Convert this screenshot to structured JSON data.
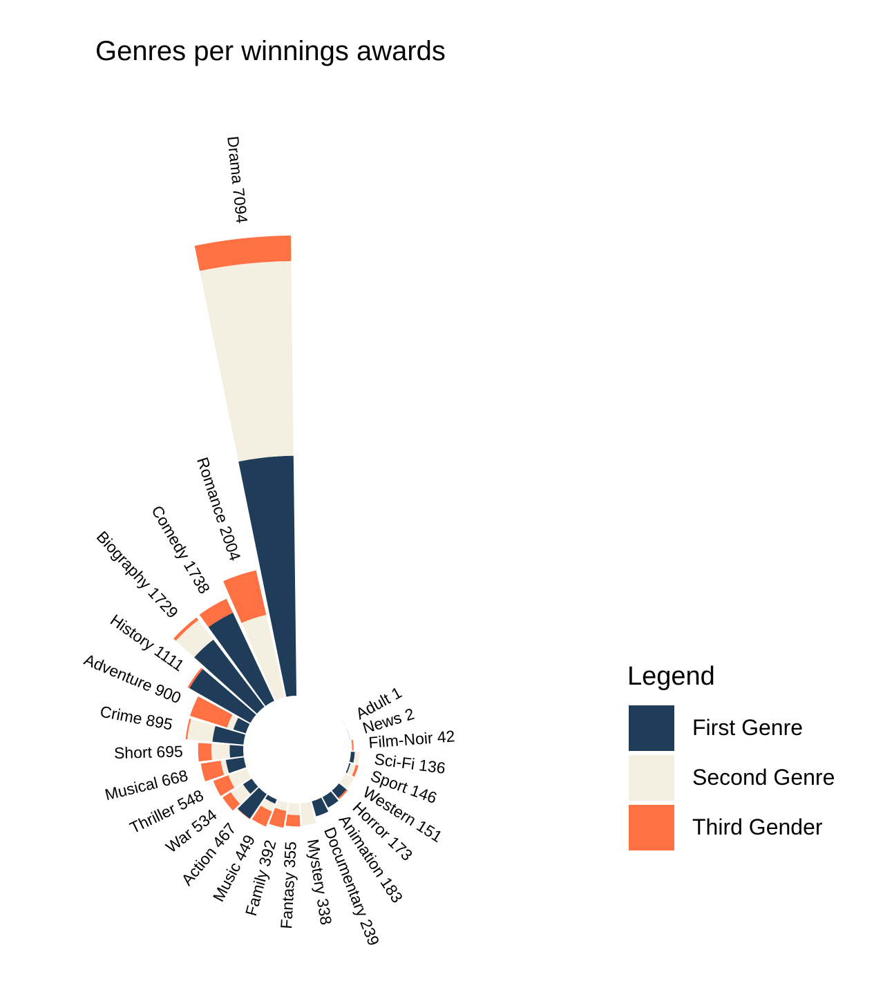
{
  "chart_data": {
    "type": "bar",
    "coordinate_system": "polar",
    "stacked": true,
    "title": "Genres per winnings awards",
    "categories": [
      "Drama",
      "Romance",
      "Comedy",
      "Biography",
      "History",
      "Adventure",
      "Crime",
      "Short",
      "Musical",
      "Thriller",
      "War",
      "Action",
      "Music",
      "Family",
      "Fantasy",
      "Mystery",
      "Documentary",
      "Animation",
      "Horror",
      "Western",
      "Sport",
      "Sci-Fi",
      "Film-Noir",
      "News",
      "Adult"
    ],
    "totals": [
      7094,
      2004,
      1738,
      1729,
      1111,
      900,
      895,
      695,
      668,
      548,
      534,
      467,
      449,
      392,
      355,
      338,
      239,
      183,
      173,
      151,
      146,
      136,
      42,
      2,
      1
    ],
    "series": [
      {
        "name": "First Genre",
        "values": [
          3700,
          0,
          1500,
          1300,
          1080,
          200,
          480,
          210,
          280,
          0,
          160,
          460,
          70,
          0,
          0,
          0,
          239,
          183,
          147,
          0,
          21,
          60,
          0,
          2,
          1
        ]
      },
      {
        "name": "Second Genre",
        "values": [
          3000,
          1300,
          0,
          380,
          0,
          100,
          390,
          280,
          80,
          300,
          224,
          0,
          129,
          130,
          180,
          338,
          0,
          0,
          0,
          151,
          85,
          76,
          20,
          0,
          0
        ]
      },
      {
        "name": "Third Gender",
        "values": [
          394,
          704,
          238,
          49,
          31,
          600,
          25,
          205,
          308,
          248,
          150,
          7,
          250,
          262,
          175,
          0,
          0,
          0,
          26,
          0,
          40,
          0,
          22,
          0,
          0
        ]
      }
    ],
    "legend": {
      "title": "Legend",
      "position": "right"
    },
    "colors": {
      "First Genre": "#1f3d58",
      "Second Genre": "#f5efe2",
      "Third Gender": "#ff7043"
    },
    "grid": false
  }
}
